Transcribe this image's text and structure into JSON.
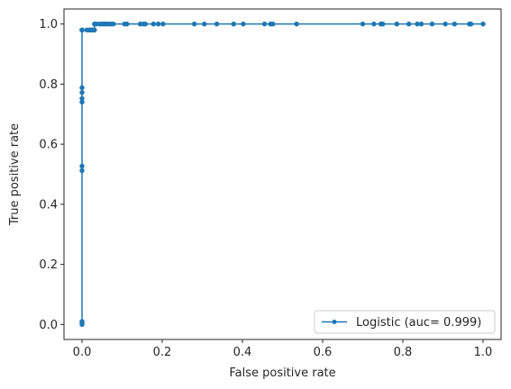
{
  "chart_data": {
    "type": "line",
    "xlabel": "False positive rate",
    "ylabel": "True positive rate",
    "xlim": [
      -0.045,
      1.045
    ],
    "ylim": [
      -0.05,
      1.05
    ],
    "xticks": [
      0.0,
      0.2,
      0.4,
      0.6,
      0.8,
      1.0
    ],
    "xtick_labels": [
      "0.0",
      "0.2",
      "0.4",
      "0.6",
      "0.8",
      "1.0"
    ],
    "yticks": [
      0.0,
      0.2,
      0.4,
      0.6,
      0.8,
      1.0
    ],
    "ytick_labels": [
      "0.0",
      "0.2",
      "0.4",
      "0.6",
      "0.8",
      "1.0"
    ],
    "grid": false,
    "legend_position": "lower-right",
    "series": [
      {
        "name": "Logistic (auc= 0.999)",
        "color": "#1f77b4",
        "marker": "circle",
        "x": [
          0.0,
          0.0,
          0.0,
          0.0,
          0.0,
          0.0,
          0.0,
          0.0,
          0.0,
          0.0,
          0.0,
          0.0,
          0.0,
          0.012,
          0.018,
          0.022,
          0.025,
          0.028,
          0.031,
          0.031,
          0.036,
          0.044,
          0.05,
          0.055,
          0.06,
          0.066,
          0.072,
          0.078,
          0.106,
          0.112,
          0.145,
          0.153,
          0.158,
          0.178,
          0.19,
          0.202,
          0.28,
          0.305,
          0.336,
          0.378,
          0.402,
          0.455,
          0.47,
          0.476,
          0.535,
          0.7,
          0.728,
          0.745,
          0.75,
          0.785,
          0.815,
          0.836,
          0.846,
          0.873,
          0.906,
          0.929,
          0.966,
          0.97,
          1.0
        ],
        "y": [
          0.0,
          0.005,
          0.01,
          0.512,
          0.527,
          0.74,
          0.752,
          0.772,
          0.788,
          0.98,
          0.98,
          0.98,
          0.98,
          0.98,
          0.98,
          0.98,
          0.98,
          0.98,
          0.98,
          1.0,
          1.0,
          1.0,
          1.0,
          1.0,
          1.0,
          1.0,
          1.0,
          1.0,
          1.0,
          1.0,
          1.0,
          1.0,
          1.0,
          1.0,
          1.0,
          1.0,
          1.0,
          1.0,
          1.0,
          1.0,
          1.0,
          1.0,
          1.0,
          1.0,
          1.0,
          1.0,
          1.0,
          1.0,
          1.0,
          1.0,
          1.0,
          1.0,
          1.0,
          1.0,
          1.0,
          1.0,
          1.0,
          1.0,
          1.0
        ]
      }
    ]
  }
}
